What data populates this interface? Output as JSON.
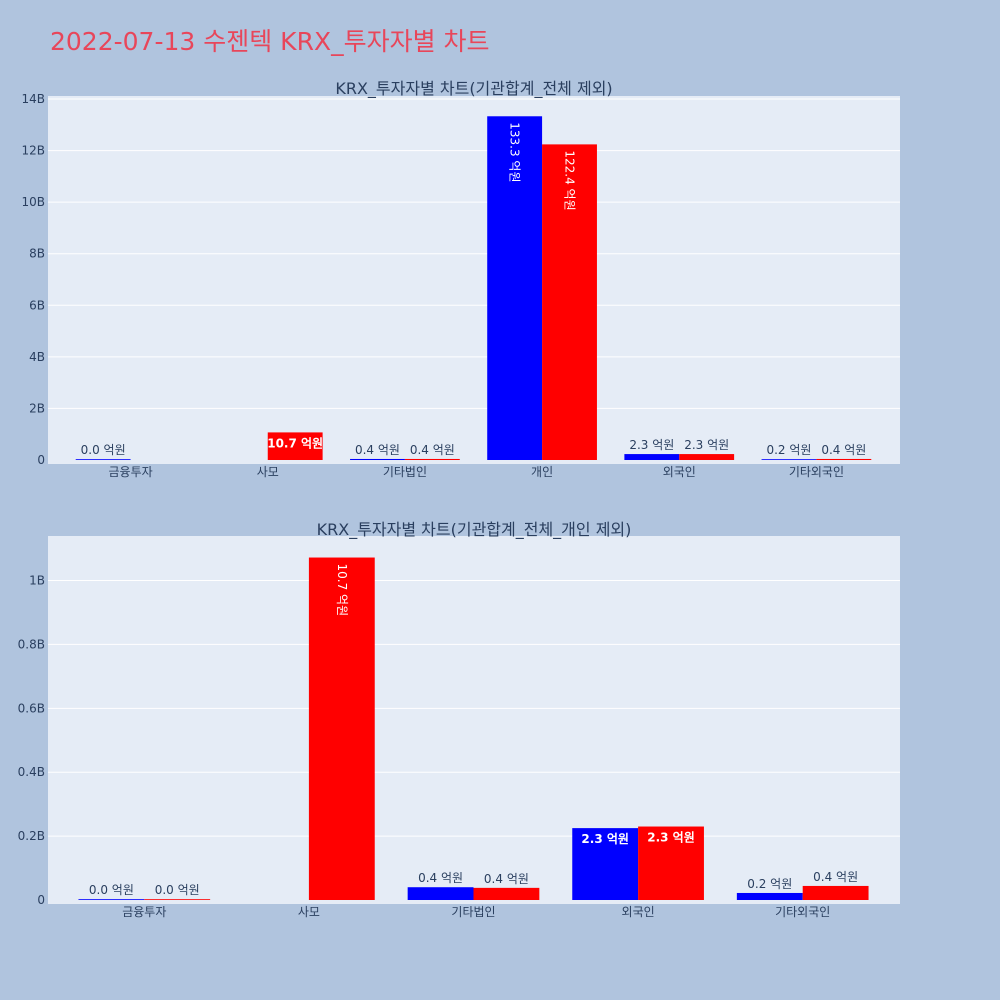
{
  "page": {
    "title": "2022-07-13 수젠텍 KRX_투자자별 차트"
  },
  "colors": {
    "buy": "#0000ff",
    "sell": "#ff0000",
    "plot_bg": "#e5ecf6",
    "page_bg": "#b0c4de",
    "title": "#e8465a"
  },
  "chart_data": [
    {
      "type": "bar",
      "title": "KRX_투자자별 차트(기관합계_전체 제외)",
      "categories": [
        "금융투자",
        "사모",
        "기타법인",
        "개인",
        "외국인",
        "기타외국인"
      ],
      "ylim": [
        0,
        14000000000
      ],
      "yticks": [
        0,
        2000000000,
        4000000000,
        6000000000,
        8000000000,
        10000000000,
        12000000000,
        14000000000
      ],
      "ytick_labels": [
        "0",
        "2B",
        "4B",
        "6B",
        "8B",
        "10B",
        "12B",
        "14B"
      ],
      "grid": true,
      "series": [
        {
          "color": "#0000ff",
          "values": [
            1000000,
            0,
            40000000,
            13330000000,
            230000000,
            20000000
          ],
          "labels": [
            "0.0 억원",
            "",
            "0.4 억원",
            "133.3 억원",
            "2.3 억원",
            "0.2 억원"
          ]
        },
        {
          "color": "#ff0000",
          "values": [
            0,
            1070000000,
            40000000,
            12240000000,
            230000000,
            40000000
          ],
          "labels": [
            "",
            "10.7 억원",
            "0.4 억원",
            "122.4 억원",
            "2.3 억원",
            "0.4 억원"
          ]
        }
      ]
    },
    {
      "type": "bar",
      "title": "KRX_투자자별 차트(기관합계_전체_개인 제외)",
      "categories": [
        "금융투자",
        "사모",
        "기타법인",
        "외국인",
        "기타외국인"
      ],
      "ylim": [
        0,
        1130000000
      ],
      "yticks": [
        0,
        200000000,
        400000000,
        600000000,
        800000000,
        1000000000
      ],
      "ytick_labels": [
        "0",
        "0.2B",
        "0.4B",
        "0.6B",
        "0.8B",
        "1B"
      ],
      "grid": true,
      "series": [
        {
          "color": "#0000ff",
          "values": [
            1000000,
            0,
            40000000,
            225000000,
            22000000
          ],
          "labels": [
            "0.0 억원",
            "",
            "0.4 억원",
            "2.3 억원",
            "0.2 억원"
          ]
        },
        {
          "color": "#ff0000",
          "values": [
            500000,
            1072000000,
            38000000,
            230000000,
            44000000
          ],
          "labels": [
            "0.0 억원",
            "10.7 억원",
            "0.4 억원",
            "2.3 억원",
            "0.4 억원"
          ]
        }
      ]
    }
  ]
}
